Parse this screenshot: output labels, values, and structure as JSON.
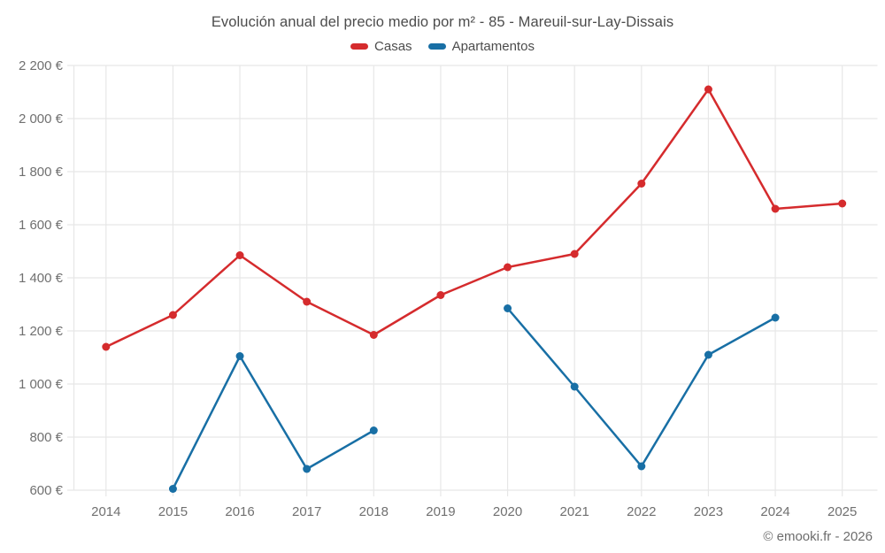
{
  "title": "Evolución anual del precio medio por m² - 85 - Mareuil-sur-Lay-Dissais",
  "footer": "© emooki.fr - 2026",
  "colors": {
    "casas": "#d52b2d",
    "apartamentos": "#186fa5",
    "grid": "#e7e7e7",
    "axis_text": "#707070",
    "title_text": "#4c4c4c"
  },
  "chart_data": {
    "type": "line",
    "title": "Evolución anual del precio medio por m² - 85 - Mareuil-sur-Lay-Dissais",
    "x": [
      2014,
      2015,
      2016,
      2017,
      2018,
      2019,
      2020,
      2021,
      2022,
      2023,
      2024,
      2025
    ],
    "x_tick_labels": [
      "2014",
      "2015",
      "2016",
      "2017",
      "2018",
      "2019",
      "2020",
      "2021",
      "2022",
      "2023",
      "2024",
      "2025"
    ],
    "series": [
      {
        "name": "Casas",
        "color": "#d52b2d",
        "values": [
          1140,
          1260,
          1485,
          1310,
          1185,
          1335,
          1440,
          1490,
          1755,
          2110,
          1660,
          1680
        ]
      },
      {
        "name": "Apartamentos",
        "color": "#186fa5",
        "values": [
          null,
          605,
          1105,
          680,
          825,
          null,
          1285,
          990,
          690,
          1110,
          1250,
          null
        ]
      }
    ],
    "ylim": [
      600,
      2200
    ],
    "y_tick_step": 200,
    "y_tick_labels": [
      "600 €",
      "800 €",
      "1 000 €",
      "1 200 €",
      "1 400 €",
      "1 600 €",
      "1 800 €",
      "2 000 €",
      "2 200 €"
    ],
    "ylabel": "",
    "xlabel": "",
    "grid": true,
    "legend_position": "top",
    "marker": "circle"
  }
}
